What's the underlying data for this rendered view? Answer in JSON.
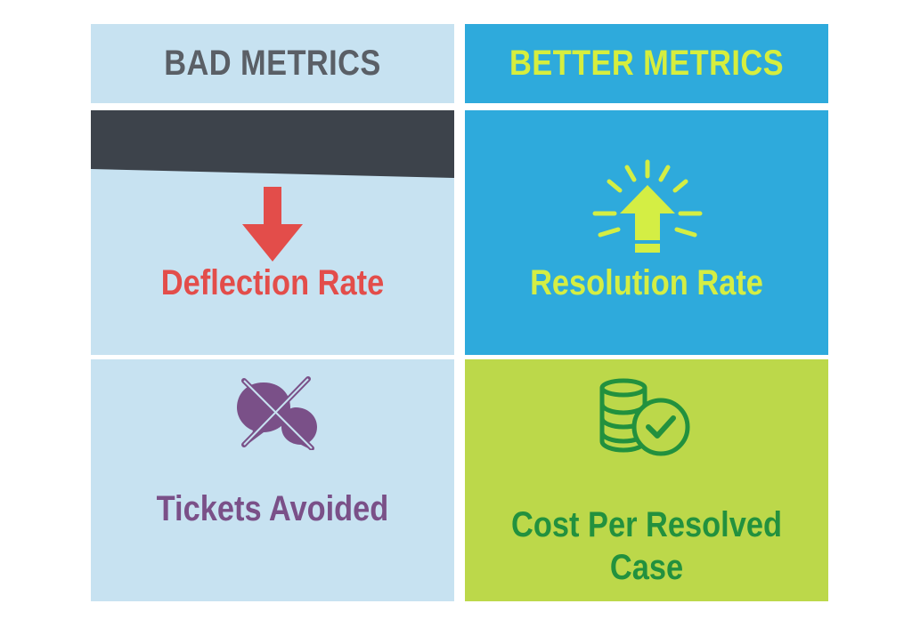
{
  "headers": {
    "bad": "BAD METRICS",
    "better": "BETTER METRICS"
  },
  "cards": {
    "bad_1": {
      "label": "Deflection Rate",
      "icon": "arrow-down-icon"
    },
    "better_1": {
      "label": "Resolution Rate",
      "icon": "arrow-up-burst-icon"
    },
    "bad_2": {
      "label": "Tickets Avoided",
      "icon": "crossed-chat-bubbles-icon"
    },
    "better_2": {
      "label_line1": "Cost Per Resolved",
      "label_line2": "Case",
      "icon": "coins-check-icon"
    }
  },
  "colors": {
    "bad_bg": "#c7e2f1",
    "better_blue": "#2eaadc",
    "better_green": "#bcd84a",
    "bad_header_text": "#5a5f66",
    "better_header_text": "#d6ee3e",
    "deflection_red": "#e34d4a",
    "resolution_text": "#d4ee44",
    "tickets_purple": "#7a5088",
    "cost_green": "#22913e",
    "dark_band": "#3d434b"
  }
}
